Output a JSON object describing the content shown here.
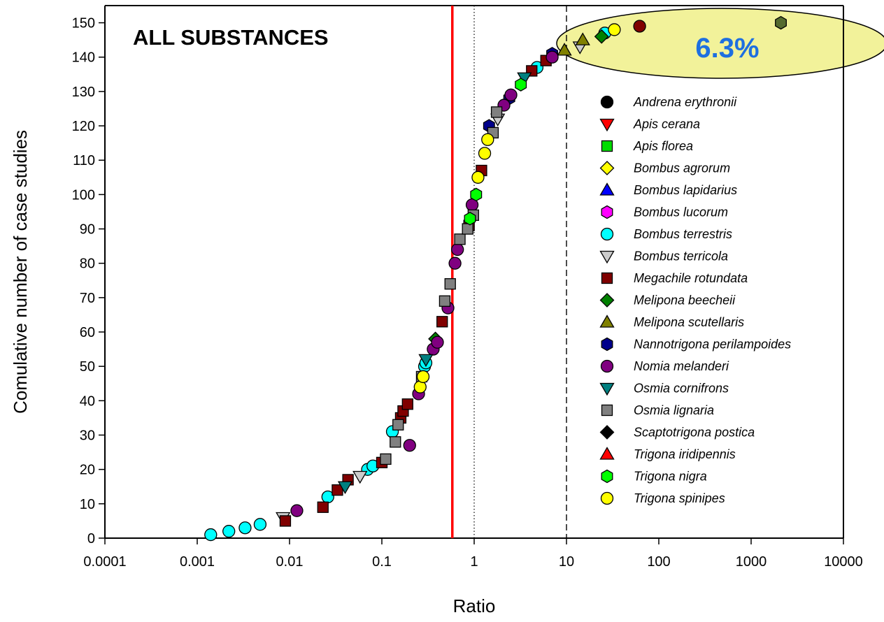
{
  "chart_data": {
    "type": "scatter",
    "title": "ALL SUBSTANCES",
    "xlabel": "Ratio",
    "ylabel": "Comulative number of case studies",
    "x_scale": "log",
    "xlim": [
      0.0001,
      10000
    ],
    "ylim": [
      0,
      155
    ],
    "x_ticks": [
      "0.0001",
      "0.001",
      "0.01",
      "0.1",
      "1",
      "10",
      "100",
      "1000",
      "10000"
    ],
    "y_ticks": [
      "0",
      "10",
      "20",
      "30",
      "40",
      "50",
      "60",
      "70",
      "80",
      "90",
      "100",
      "110",
      "120",
      "130",
      "140",
      "150"
    ],
    "reference_lines": [
      {
        "x": 0.58,
        "style": "solid",
        "color": "#ff0000"
      },
      {
        "x": 1,
        "style": "dotted",
        "color": "#000000"
      },
      {
        "x": 10,
        "style": "dashed",
        "color": "#000000"
      }
    ],
    "highlight": {
      "label": "6.3%",
      "color": "#f2f29a"
    },
    "grid": false,
    "legend_position": "right",
    "series": [
      {
        "name": "Andrena erythronii",
        "marker": "circle",
        "color": "#000000",
        "points": []
      },
      {
        "name": "Apis cerana",
        "marker": "triangle-down",
        "color": "#ff0000",
        "points": []
      },
      {
        "name": "Apis florea",
        "marker": "square",
        "color": "#00dd00",
        "points": []
      },
      {
        "name": "Bombus agrorum",
        "marker": "diamond",
        "color": "#ffff00",
        "points": []
      },
      {
        "name": "Bombus lapidarius",
        "marker": "triangle-up",
        "color": "#0000ff",
        "points": []
      },
      {
        "name": "Bombus lucorum",
        "marker": "hexagon",
        "color": "#ff00ff",
        "points": []
      },
      {
        "name": "Bombus terrestris",
        "marker": "circle",
        "color": "#00ffff",
        "points": [
          [
            0.0014,
            1
          ],
          [
            0.0022,
            2
          ],
          [
            0.0033,
            3
          ],
          [
            0.0048,
            4
          ],
          [
            0.026,
            12
          ],
          [
            0.07,
            20
          ],
          [
            0.08,
            21
          ],
          [
            0.13,
            31
          ],
          [
            0.29,
            50
          ],
          [
            0.3,
            51
          ],
          [
            4.8,
            137
          ],
          [
            26,
            147
          ]
        ]
      },
      {
        "name": "Bombus terricola",
        "marker": "triangle-down",
        "color": "#cccccc",
        "points": [
          [
            0.0085,
            6
          ],
          [
            0.058,
            18
          ],
          [
            1.8,
            122
          ],
          [
            14,
            143
          ]
        ]
      },
      {
        "name": "Megachile rotundata",
        "marker": "square",
        "color": "#800000",
        "points": [
          [
            0.009,
            5
          ],
          [
            0.023,
            9
          ],
          [
            0.033,
            14
          ],
          [
            0.043,
            17
          ],
          [
            0.1,
            22
          ],
          [
            0.16,
            35
          ],
          [
            0.17,
            37
          ],
          [
            0.19,
            39
          ],
          [
            0.45,
            63
          ],
          [
            0.88,
            91
          ],
          [
            1.2,
            107
          ],
          [
            4.2,
            136
          ],
          [
            6,
            139
          ]
        ]
      },
      {
        "name": "Melipona beecheii",
        "marker": "diamond",
        "color": "#008000",
        "points": [
          [
            0.38,
            58
          ],
          [
            24,
            146
          ]
        ]
      },
      {
        "name": "Melipona scutellaris",
        "marker": "triangle-up",
        "color": "#808000",
        "points": [
          [
            15,
            145
          ],
          [
            9.5,
            142
          ]
        ]
      },
      {
        "name": "Nannotrigona perilampoides",
        "marker": "hexagon",
        "color": "#00008b",
        "points": [
          [
            2.4,
            128
          ],
          [
            1.45,
            120
          ],
          [
            7,
            141
          ]
        ]
      },
      {
        "name": "Nomia melanderi",
        "marker": "circle",
        "color": "#800080",
        "points": [
          [
            0.012,
            8
          ],
          [
            0.2,
            27
          ],
          [
            0.25,
            42
          ],
          [
            0.36,
            55
          ],
          [
            0.4,
            57
          ],
          [
            0.52,
            67
          ],
          [
            0.62,
            80
          ],
          [
            0.66,
            84
          ],
          [
            0.95,
            97
          ],
          [
            2.1,
            126
          ],
          [
            2.5,
            129
          ],
          [
            7,
            140
          ]
        ]
      },
      {
        "name": "Osmia cornifrons",
        "marker": "triangle-down",
        "color": "#008080",
        "points": [
          [
            0.04,
            15
          ],
          [
            0.3,
            52
          ],
          [
            3.5,
            134
          ]
        ]
      },
      {
        "name": "Osmia lignaria",
        "marker": "square",
        "color": "#808080",
        "points": [
          [
            0.11,
            23
          ],
          [
            0.14,
            28
          ],
          [
            0.15,
            33
          ],
          [
            0.27,
            47
          ],
          [
            0.48,
            69
          ],
          [
            0.55,
            74
          ],
          [
            0.7,
            87
          ],
          [
            0.85,
            90
          ],
          [
            0.98,
            94
          ],
          [
            1.6,
            118
          ],
          [
            1.75,
            124
          ]
        ]
      },
      {
        "name": "Scaptotrigona postica",
        "marker": "diamond",
        "color": "#000000",
        "points": []
      },
      {
        "name": "Trigona iridipennis",
        "marker": "triangle-up",
        "color": "#ff0000",
        "points": []
      },
      {
        "name": "Trigona nigra",
        "marker": "hexagon",
        "color": "#00ff00",
        "points": [
          [
            0.9,
            93
          ],
          [
            1.05,
            100
          ],
          [
            3.2,
            132
          ]
        ]
      },
      {
        "name": "Trigona spinipes",
        "marker": "circle",
        "color": "#ffff00",
        "points": [
          [
            0.26,
            44
          ],
          [
            0.28,
            47
          ],
          [
            1.1,
            105
          ],
          [
            1.3,
            112
          ],
          [
            1.4,
            116
          ],
          [
            33,
            148
          ]
        ]
      },
      {
        "name": "",
        "marker": "circle",
        "color": "#800000",
        "points": [
          [
            62,
            149
          ]
        ]
      },
      {
        "name": "",
        "marker": "hexagon",
        "color": "#556b2f",
        "points": [
          [
            2100,
            150
          ]
        ]
      }
    ]
  }
}
